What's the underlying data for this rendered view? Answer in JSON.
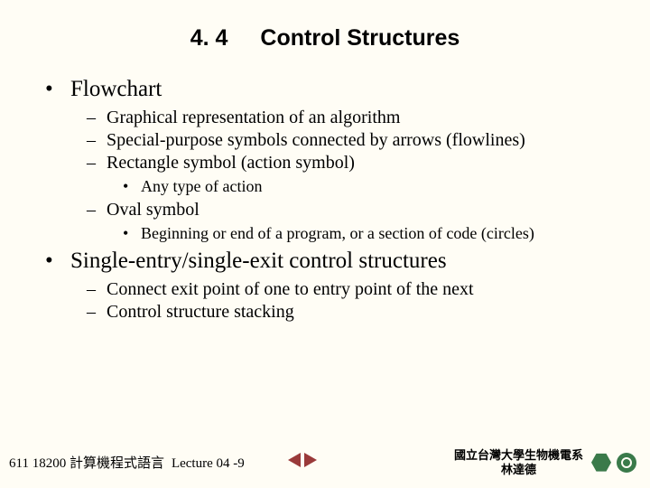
{
  "title": {
    "section_number": "4. 4",
    "section_name": "Control Structures"
  },
  "bullets": {
    "l1_0": "Flowchart",
    "l2_0": "Graphical representation of an algorithm",
    "l2_1": "Special-purpose symbols connected by arrows (flowlines)",
    "l2_2": "Rectangle symbol (action symbol)",
    "l3_0": "Any type of action",
    "l2_3": "Oval symbol",
    "l3_1": "Beginning or end of a program, or a section of code (circles)",
    "l1_1": "Single-entry/single-exit control structures",
    "l2_4": "Connect exit point of one to entry point of the next",
    "l2_5": "Control structure stacking"
  },
  "footer": {
    "course_code": "611 18200 計算機程式語言",
    "lecture": "Lecture 04 -9",
    "institution_line1": "國立台灣大學生物機電系",
    "institution_line2": "林達德"
  },
  "colors": {
    "background": "#fffdf5",
    "text": "#000000",
    "arrow": "#9a3a3a",
    "logo": "#3a7a4a"
  }
}
